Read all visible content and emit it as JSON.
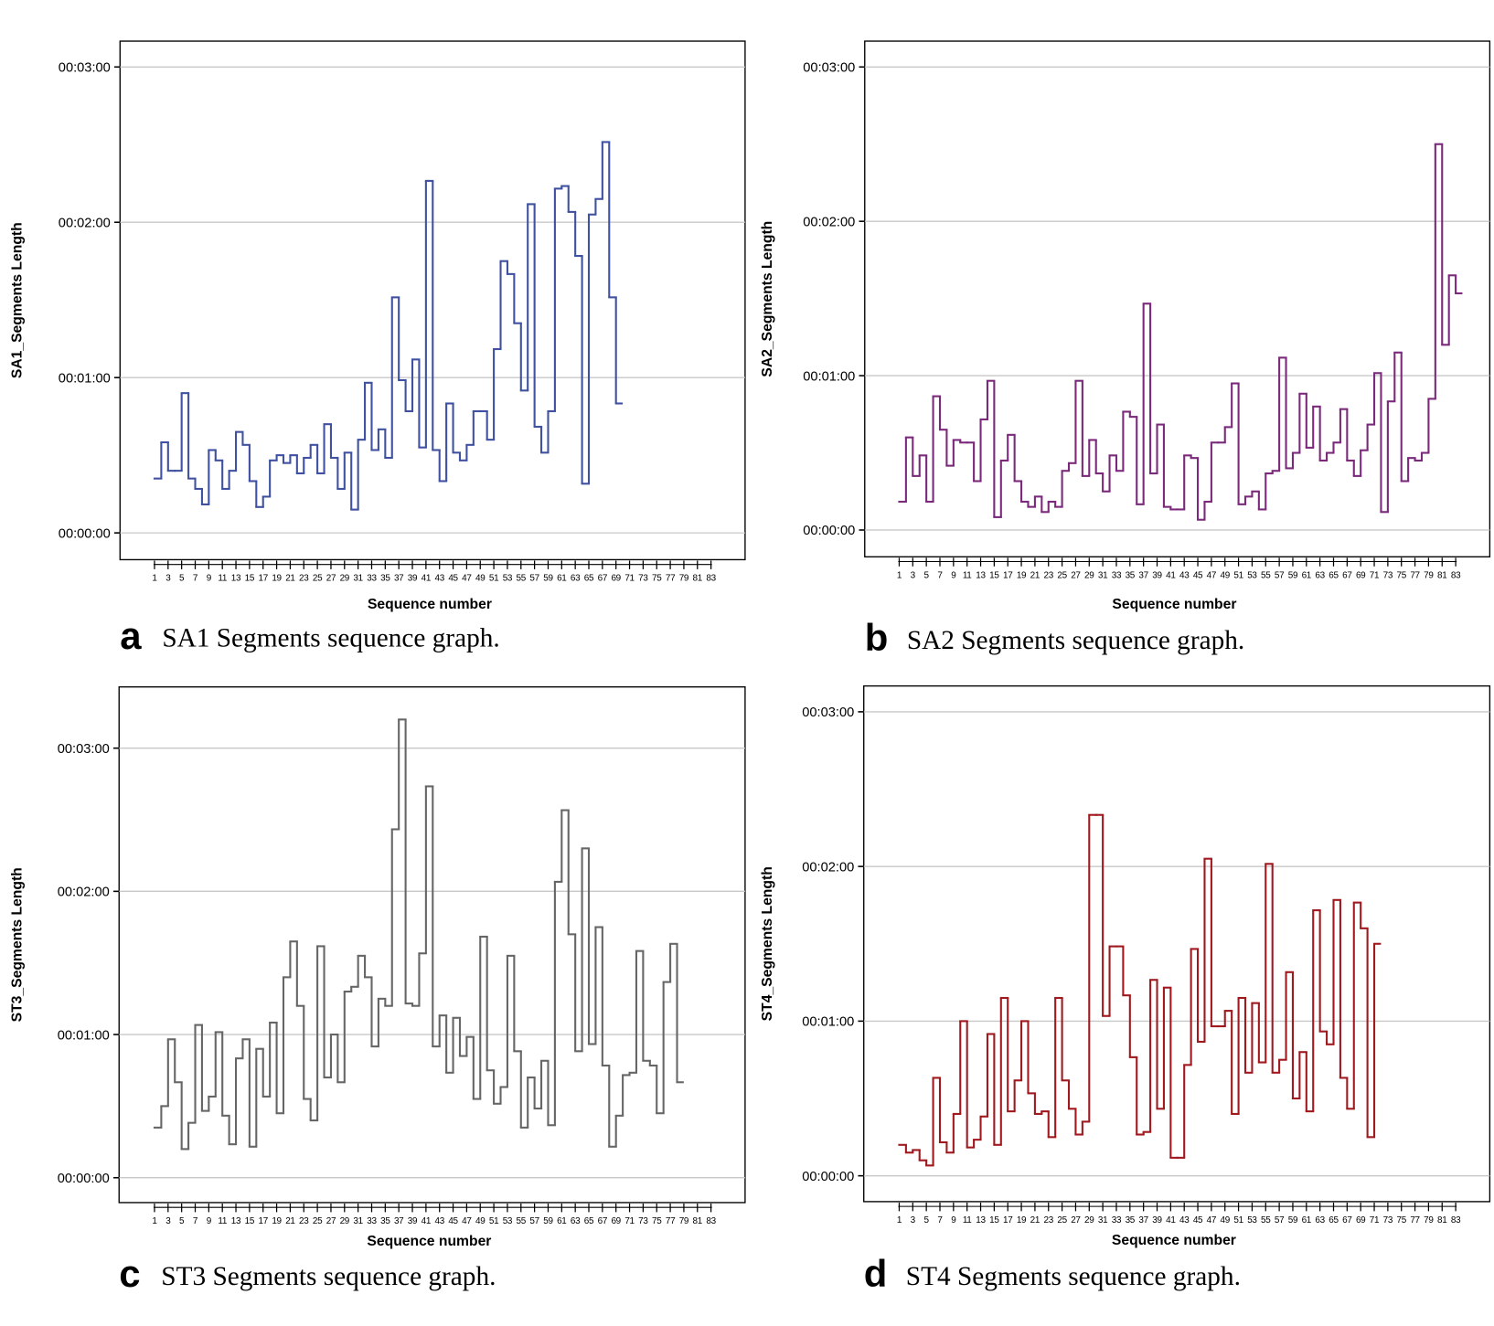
{
  "chart_data": [
    {
      "id": "a",
      "type": "line",
      "style": "step",
      "caption_letter": "a",
      "caption": "SA1 Segments sequence graph.",
      "xlabel": "Sequence number",
      "ylabel": "SA1_Segments Length",
      "color": "#3f51a0",
      "y_unit": "seconds",
      "ylim": [
        -10,
        190
      ],
      "y_ticks": [
        0,
        60,
        120,
        180
      ],
      "y_tick_labels": [
        "00:00:00",
        "00:01:00",
        "00:02:00",
        "00:03:00"
      ],
      "x_range": [
        1,
        83
      ],
      "x_tick_labels": [
        "1",
        "3",
        "5",
        "7",
        "9",
        "11",
        "13",
        "15",
        "17",
        "19",
        "21",
        "23",
        "25",
        "27",
        "29",
        "31",
        "33",
        "35",
        "37",
        "39",
        "41",
        "43",
        "45",
        "47",
        "49",
        "51",
        "53",
        "55",
        "57",
        "59",
        "61",
        "63",
        "65",
        "67",
        "69",
        "71",
        "73",
        "75",
        "77",
        "79",
        "81",
        "83"
      ],
      "grid": true,
      "values": [
        21,
        35,
        24,
        24,
        54,
        21,
        17,
        11,
        32,
        28,
        17,
        24,
        39,
        34,
        20,
        10,
        14,
        28,
        30,
        27,
        30,
        23,
        29,
        34,
        23,
        42,
        29,
        17,
        31,
        9,
        36,
        58,
        32,
        40,
        29,
        91,
        59,
        47,
        67,
        33,
        136,
        32,
        20,
        50,
        31,
        28,
        34,
        47,
        47,
        36,
        71,
        105,
        100,
        81,
        55,
        127,
        41,
        31,
        47,
        133,
        134,
        124,
        107,
        19,
        123,
        129,
        151,
        91,
        50
      ]
    },
    {
      "id": "b",
      "type": "line",
      "style": "step",
      "caption_letter": "b",
      "caption": "SA2 Segments sequence graph.",
      "xlabel": "Sequence number",
      "ylabel": "SA2_Segments Length",
      "color": "#7b2a7b",
      "y_unit": "seconds",
      "ylim": [
        -10,
        190
      ],
      "y_ticks": [
        0,
        60,
        120,
        180
      ],
      "y_tick_labels": [
        "00:00:00",
        "00:01:00",
        "00:02:00",
        "00:03:00"
      ],
      "x_range": [
        1,
        83
      ],
      "x_tick_labels": [
        "1",
        "3",
        "5",
        "7",
        "9",
        "11",
        "13",
        "15",
        "17",
        "19",
        "21",
        "23",
        "25",
        "27",
        "29",
        "31",
        "33",
        "35",
        "37",
        "39",
        "41",
        "43",
        "45",
        "47",
        "49",
        "51",
        "53",
        "55",
        "57",
        "59",
        "61",
        "63",
        "65",
        "67",
        "69",
        "71",
        "73",
        "75",
        "77",
        "79",
        "81",
        "83"
      ],
      "grid": true,
      "values": [
        11,
        36,
        21,
        29,
        11,
        52,
        39,
        25,
        35,
        34,
        34,
        19,
        43,
        58,
        5,
        27,
        37,
        19,
        11,
        9,
        13,
        7,
        11,
        9,
        23,
        26,
        58,
        21,
        35,
        22,
        15,
        29,
        23,
        46,
        44,
        10,
        88,
        22,
        41,
        9,
        8,
        8,
        29,
        28,
        4,
        11,
        34,
        34,
        40,
        57,
        10,
        13,
        15,
        8,
        22,
        23,
        67,
        24,
        30,
        53,
        32,
        48,
        27,
        30,
        34,
        47,
        27,
        21,
        31,
        41,
        61,
        7,
        50,
        69,
        19,
        28,
        27,
        30,
        51,
        150,
        72,
        99,
        92
      ]
    },
    {
      "id": "c",
      "type": "line",
      "style": "step",
      "caption_letter": "c",
      "caption": "ST3 Segments sequence graph.",
      "xlabel": "Sequence number",
      "ylabel": "ST3_Segments Length",
      "color": "#666666",
      "y_unit": "seconds",
      "ylim": [
        -10,
        205
      ],
      "y_ticks": [
        0,
        60,
        120,
        180
      ],
      "y_tick_labels": [
        "00:00:00",
        "00:01:00",
        "00:02:00",
        "00:03:00"
      ],
      "x_range": [
        1,
        83
      ],
      "x_tick_labels": [
        "1",
        "3",
        "5",
        "7",
        "9",
        "11",
        "13",
        "15",
        "17",
        "19",
        "21",
        "23",
        "25",
        "27",
        "29",
        "31",
        "33",
        "35",
        "37",
        "39",
        "41",
        "43",
        "45",
        "47",
        "49",
        "51",
        "53",
        "55",
        "57",
        "59",
        "61",
        "63",
        "65",
        "67",
        "69",
        "71",
        "73",
        "75",
        "77",
        "79",
        "81",
        "83"
      ],
      "grid": true,
      "values": [
        21,
        30,
        58,
        40,
        12,
        23,
        64,
        28,
        34,
        61,
        26,
        14,
        50,
        58,
        13,
        54,
        34,
        65,
        27,
        84,
        99,
        72,
        33,
        24,
        97,
        42,
        60,
        40,
        78,
        80,
        93,
        84,
        55,
        75,
        72,
        146,
        192,
        73,
        72,
        94,
        164,
        55,
        68,
        44,
        67,
        51,
        59,
        33,
        101,
        45,
        31,
        38,
        93,
        53,
        21,
        42,
        29,
        49,
        22,
        124,
        154,
        102,
        53,
        138,
        56,
        105,
        47,
        13,
        26,
        43,
        44,
        95,
        49,
        47,
        27,
        82,
        98,
        40
      ]
    },
    {
      "id": "d",
      "type": "line",
      "style": "step",
      "caption_letter": "d",
      "caption": "ST4 Segments sequence graph.",
      "xlabel": "Sequence number",
      "ylabel": "ST4_Segments Length",
      "color": "#a0191f",
      "y_unit": "seconds",
      "ylim": [
        -10,
        190
      ],
      "y_ticks": [
        0,
        60,
        120,
        180
      ],
      "y_tick_labels": [
        "00:00:00",
        "00:01:00",
        "00:02:00",
        "00:03:00"
      ],
      "x_range": [
        1,
        83
      ],
      "x_tick_labels": [
        "1",
        "3",
        "5",
        "7",
        "9",
        "11",
        "13",
        "15",
        "17",
        "19",
        "21",
        "23",
        "25",
        "27",
        "29",
        "31",
        "33",
        "35",
        "37",
        "39",
        "41",
        "43",
        "45",
        "47",
        "49",
        "51",
        "53",
        "55",
        "57",
        "59",
        "61",
        "63",
        "65",
        "67",
        "69",
        "71",
        "73",
        "75",
        "77",
        "79",
        "81",
        "83"
      ],
      "grid": true,
      "values": [
        12,
        9,
        10,
        6,
        4,
        38,
        13,
        9,
        24,
        60,
        11,
        14,
        23,
        55,
        12,
        69,
        25,
        37,
        60,
        32,
        24,
        25,
        15,
        69,
        37,
        26,
        16,
        21,
        140,
        140,
        62,
        89,
        89,
        70,
        46,
        16,
        17,
        76,
        26,
        73,
        7,
        7,
        43,
        88,
        52,
        123,
        58,
        58,
        64,
        24,
        69,
        40,
        67,
        44,
        121,
        40,
        45,
        79,
        30,
        48,
        25,
        103,
        56,
        51,
        107,
        38,
        26,
        106,
        96,
        15,
        90
      ]
    }
  ]
}
